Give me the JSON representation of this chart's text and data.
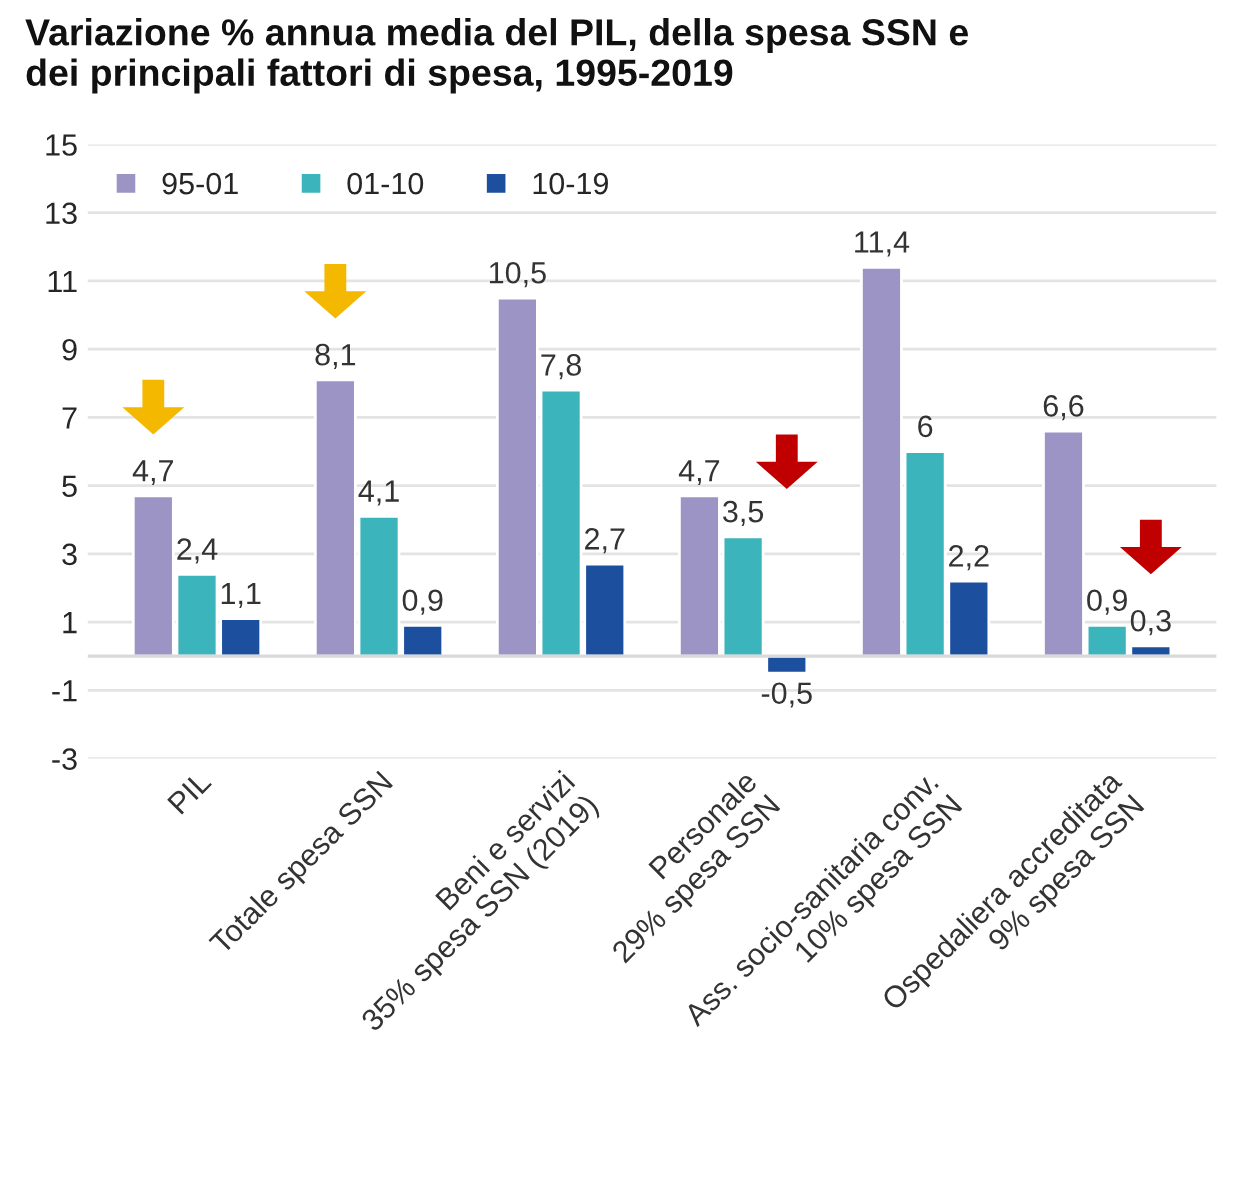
{
  "chart_data": {
    "type": "bar",
    "title": "Variazione % annua media del PIL, della spesa SSN e\ndei principali fattori di spesa, 1995-2019",
    "categories": [
      "PIL",
      "Totale spesa SSN",
      "Beni e servizi\n35% spesa SSN (2019)",
      "Personale\n29% spesa SSN",
      "Ass. socio-sanitaria conv.\n10% spesa SSN",
      "Ospedaliera accreditata\n9% spesa SSN"
    ],
    "series": [
      {
        "name": "95-01",
        "color": "#9d94c6",
        "values": [
          4.7,
          8.1,
          10.5,
          4.7,
          11.4,
          6.6
        ],
        "value_labels": [
          "4,7",
          "8,1",
          "10,5",
          "4,7",
          "11,4",
          "6,6"
        ]
      },
      {
        "name": "01-10",
        "color": "#3bb5bb",
        "values": [
          2.4,
          4.1,
          7.8,
          3.5,
          6,
          0.9
        ],
        "value_labels": [
          "2,4",
          "4,1",
          "7,8",
          "3,5",
          "6",
          "0,9"
        ]
      },
      {
        "name": "10-19",
        "color": "#1c4f9e",
        "values": [
          1.1,
          0.9,
          2.7,
          -0.5,
          2.2,
          0.3
        ],
        "value_labels": [
          "1,1",
          "0,9",
          "2,7",
          "-0,5",
          "2,2",
          "0,3"
        ]
      }
    ],
    "ylim": [
      -3,
      15
    ],
    "yticks": [
      15,
      13,
      11,
      9,
      7,
      5,
      3,
      1,
      -1,
      -3
    ],
    "grid": "y",
    "legend": "top left"
  }
}
